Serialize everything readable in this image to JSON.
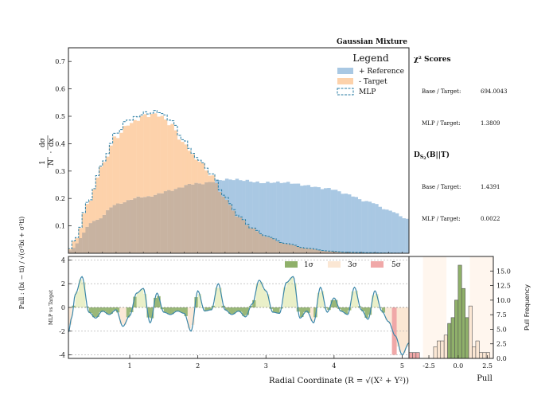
{
  "chart_data": [
    {
      "type": "bar",
      "panel": "main-histogram",
      "title": "Gaussian Mixture",
      "ylabel": "1/N · dσ/dx",
      "xlim": [
        0.1,
        5.1
      ],
      "ylim": [
        0,
        0.75
      ],
      "yticks": [
        "0.1",
        "0.2",
        "0.3",
        "0.4",
        "0.5",
        "0.6",
        "0.7"
      ],
      "legend": {
        "title": "Legend",
        "position": "top-right",
        "entries": [
          {
            "label": "+ Reference",
            "color": "#a9c8e3"
          },
          {
            "label": "- Target",
            "color": "#fdd2ab"
          },
          {
            "label": "MLP",
            "color": "#2b7ea4"
          }
        ]
      },
      "series": [
        {
          "name": "+ Reference",
          "knots_x": [
            0.1,
            0.5,
            0.8,
            1.2,
            1.6,
            2.0,
            2.3,
            2.7,
            3.0,
            3.3,
            3.6,
            3.9,
            4.2,
            4.5,
            4.8,
            5.1
          ],
          "knots_y": [
            0.01,
            0.12,
            0.18,
            0.205,
            0.23,
            0.255,
            0.268,
            0.265,
            0.26,
            0.255,
            0.25,
            0.235,
            0.215,
            0.19,
            0.155,
            0.125
          ]
        },
        {
          "name": "- Target",
          "knots_x": [
            0.1,
            0.2,
            0.4,
            0.6,
            0.8,
            1.0,
            1.2,
            1.4,
            1.6,
            1.8,
            2.0,
            2.2,
            2.4,
            2.6,
            2.8,
            3.0,
            3.3,
            3.6,
            3.9,
            4.2,
            4.5,
            4.8,
            5.1
          ],
          "knots_y": [
            0.01,
            0.05,
            0.19,
            0.32,
            0.42,
            0.48,
            0.505,
            0.5,
            0.47,
            0.405,
            0.34,
            0.28,
            0.2,
            0.135,
            0.09,
            0.06,
            0.035,
            0.018,
            0.008,
            0.004,
            0.002,
            0.001,
            0.0
          ]
        },
        {
          "name": "MLP",
          "style": "step-dashed",
          "scale": 1.025
        }
      ]
    },
    {
      "type": "area",
      "panel": "pull-ratio",
      "ylabel": "MLP vs Target",
      "ylim": [
        -4.3,
        4.3
      ],
      "yticks": [
        "-4",
        "-2",
        "0",
        "2",
        "4"
      ],
      "xticks": [
        "1",
        "2",
        "3",
        "4",
        "5"
      ],
      "xlabel": "Radial Coordinate (R = √(X² + Y²))",
      "outer_ylabel": "Pull : (bi − ti) / √(σ²bi + σ²ti)",
      "bands": [
        {
          "label": "1σ",
          "color": "#8fb06a"
        },
        {
          "label": "3σ",
          "color": "#fbe7d4"
        },
        {
          "label": "5σ",
          "color": "#f0a8a8"
        }
      ],
      "knots_x": [
        0.1,
        0.15,
        0.2,
        0.3,
        0.4,
        0.5,
        0.6,
        0.7,
        0.8,
        0.9,
        1.0,
        1.1,
        1.2,
        1.3,
        1.4,
        1.5,
        1.6,
        1.7,
        1.8,
        1.9,
        2.0,
        2.1,
        2.2,
        2.3,
        2.4,
        2.5,
        2.6,
        2.7,
        2.8,
        2.9,
        3.0,
        3.1,
        3.2,
        3.3,
        3.4,
        3.5,
        3.6,
        3.7,
        3.8,
        3.9,
        4.0,
        4.1,
        4.2,
        4.3,
        4.4,
        4.5,
        4.6,
        4.7,
        4.8,
        4.9,
        5.0,
        5.1
      ],
      "knots_y": [
        -2.1,
        -0.8,
        1.1,
        2.6,
        -0.4,
        -0.9,
        -0.3,
        -0.6,
        -0.2,
        -1.6,
        -0.7,
        1.2,
        1.6,
        -1.3,
        1.2,
        -0.4,
        -0.6,
        -0.3,
        -0.5,
        -2.0,
        1.4,
        -0.3,
        -0.2,
        2.0,
        -0.2,
        -0.6,
        -0.3,
        -0.8,
        0.3,
        2.3,
        1.4,
        -0.4,
        -0.5,
        2.1,
        2.6,
        -0.9,
        -0.3,
        -1.3,
        1.7,
        -0.4,
        0.8,
        -0.3,
        -0.6,
        1.7,
        -0.2,
        -1.0,
        1.4,
        -0.3,
        -1.2,
        -2.4,
        -4.0,
        -3.0
      ]
    },
    {
      "type": "bar",
      "panel": "pull-histogram",
      "orientation": "vertical",
      "xlabel": "Pull",
      "ylabel": "Pull Frequency",
      "xlim": [
        -4.2,
        3.0
      ],
      "ylim": [
        0,
        17.5
      ],
      "xticks": [
        "-2.5",
        "0.0",
        "2.5"
      ],
      "yticks": [
        "0.0",
        "2.5",
        "5.0",
        "7.5",
        "10.0",
        "12.5",
        "15.0"
      ],
      "bins": [
        -4.2,
        -3.9,
        -3.6,
        -3.3,
        -3.0,
        -2.7,
        -2.4,
        -2.1,
        -1.8,
        -1.5,
        -1.2,
        -0.9,
        -0.6,
        -0.3,
        0.0,
        0.3,
        0.6,
        0.9,
        1.2,
        1.5,
        1.8,
        2.1,
        2.4,
        2.7
      ],
      "counts": [
        1,
        1,
        1,
        0,
        0,
        0,
        0,
        2,
        3,
        3,
        4,
        6,
        7,
        10,
        16,
        12,
        7,
        9,
        2,
        3,
        1,
        1,
        1
      ]
    }
  ],
  "side_panel": {
    "chi2_heading": "χ² Scores",
    "chi2_rows": [
      {
        "label": "Base / Target:",
        "value": "694.0043"
      },
      {
        "label": "MLP / Target:",
        "value": "1.3809"
      }
    ],
    "ds_heading": "D",
    "ds_sub": "S",
    "ds_subsub": "2",
    "ds_tail": "(B||T)",
    "ds_rows": [
      {
        "label": "Base / Target:",
        "value": "1.4391"
      },
      {
        "label": "MLP / Target:",
        "value": "0.0022"
      }
    ]
  },
  "colors": {
    "reference": "#a9c8e3",
    "target": "#fdd2ab",
    "overlap": "#c8b3a1",
    "mlp": "#2b7ea4",
    "sigma1": "#8fb06a",
    "sigma3": "#fbe7d4",
    "sigma5": "#f0a8a8",
    "pull_fill_pos": "#e8eec3",
    "pull_line": "#3a86a8"
  }
}
